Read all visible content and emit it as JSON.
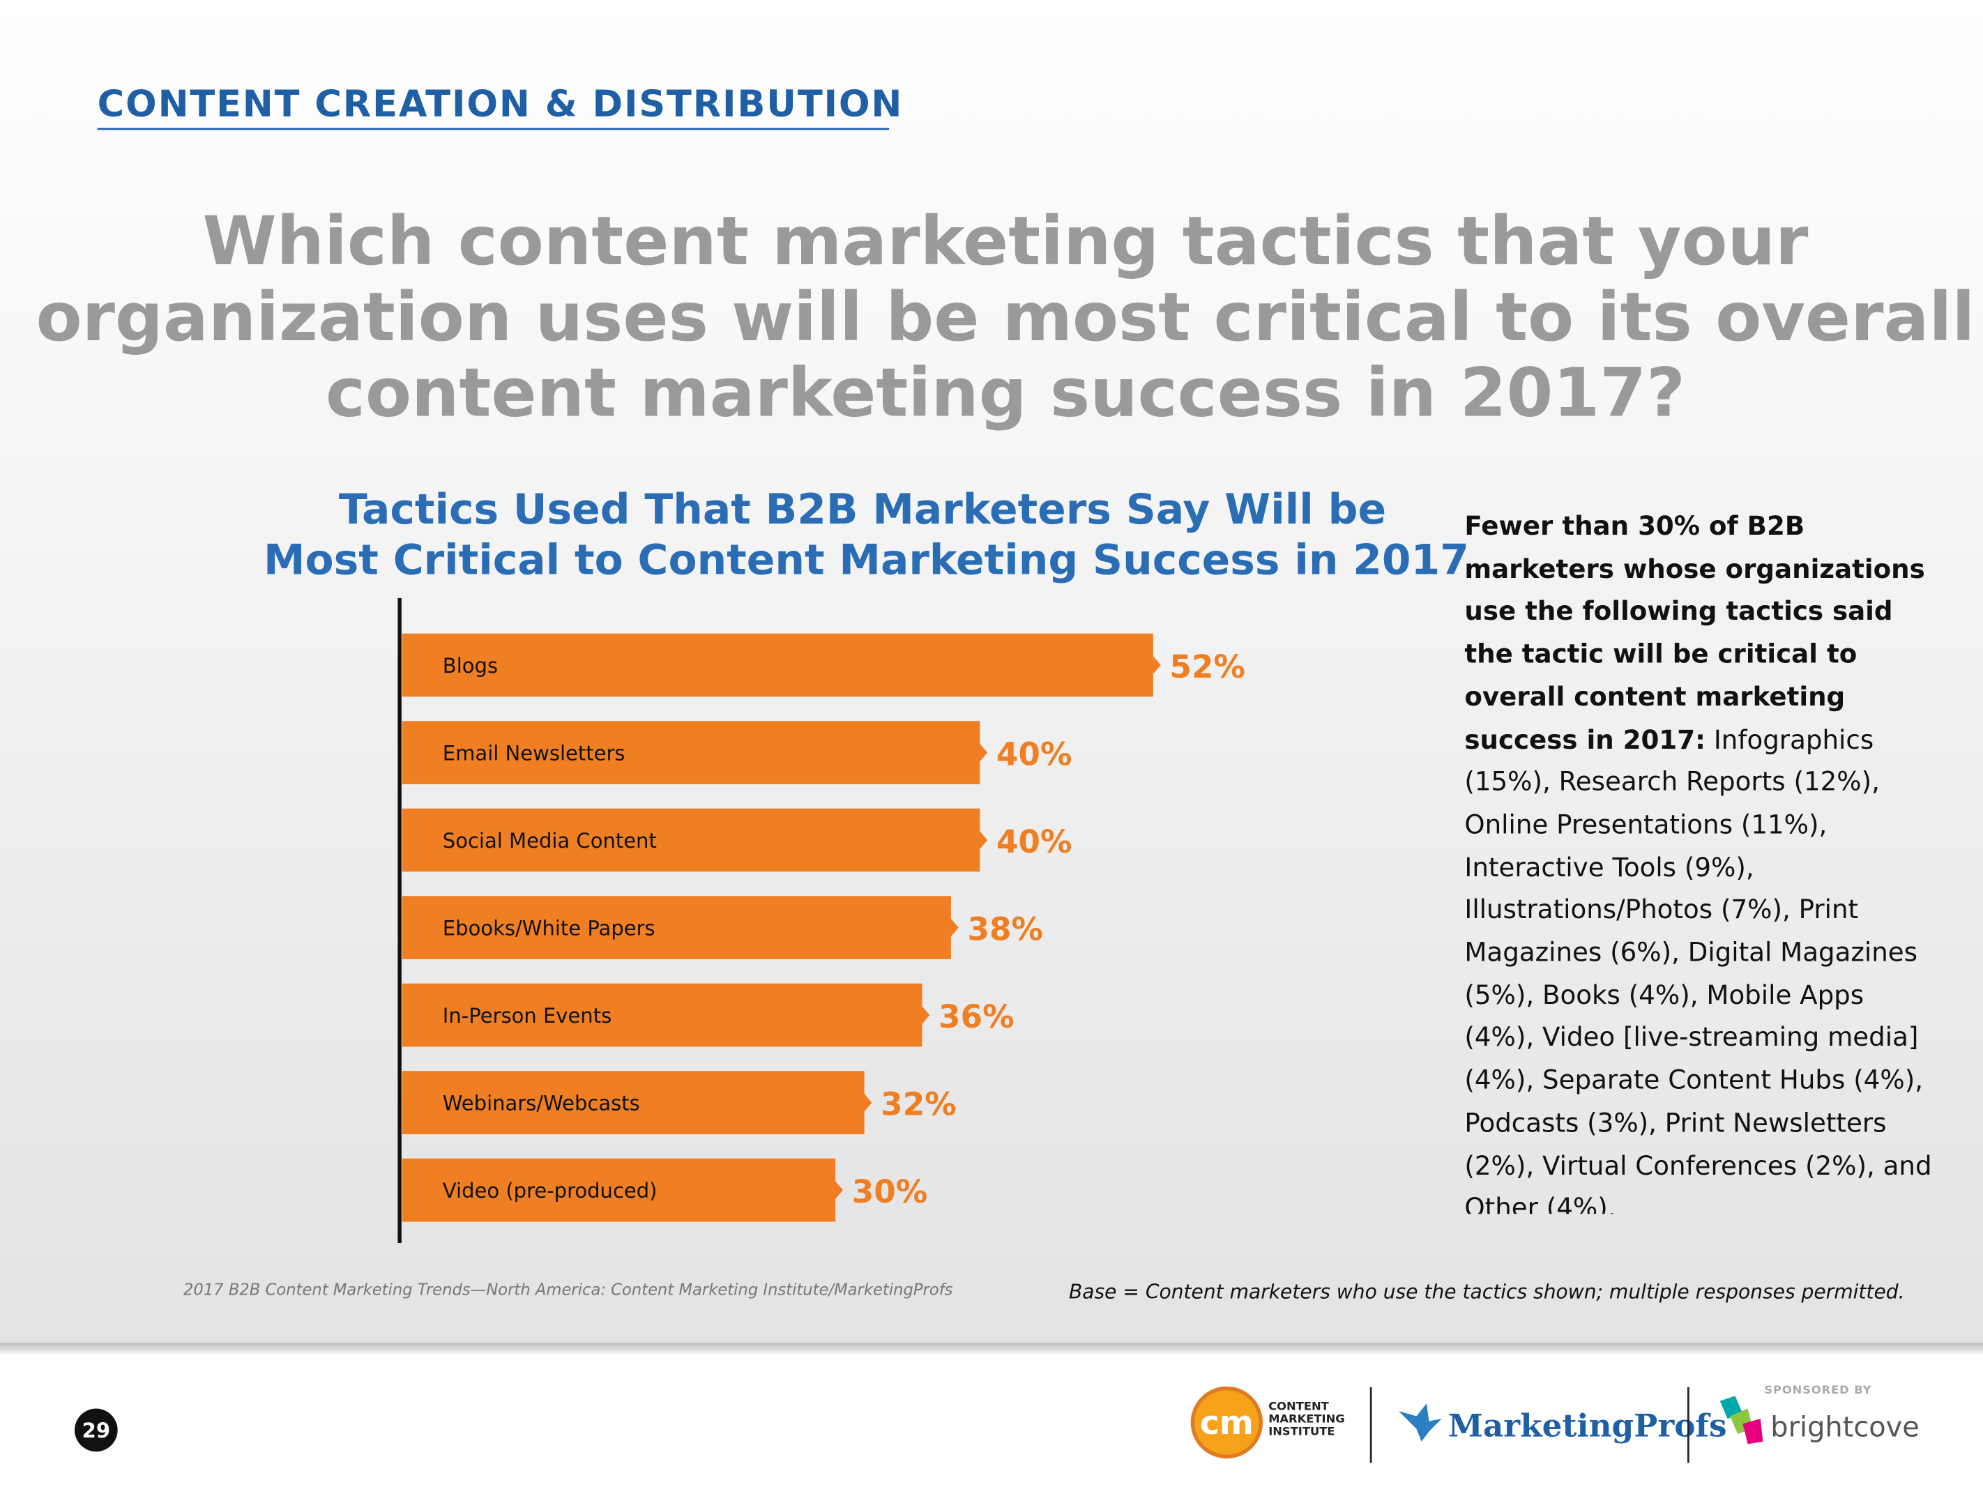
{
  "header": {
    "section": "CONTENT CREATION & DISTRIBUTION"
  },
  "question": {
    "lines": [
      "Which content marketing tactics that your",
      "organization uses will be most critical to its overall",
      "content marketing success in 2017?"
    ]
  },
  "chart_data": {
    "type": "bar",
    "orientation": "horizontal",
    "title": [
      "Tactics Used That B2B Marketers Say Will be",
      "Most Critical to Content Marketing Success in 2017"
    ],
    "categories": [
      "Blogs",
      "Email Newsletters",
      "Social Media Content",
      "Ebooks/White Papers",
      "In-Person Events",
      "Webinars/Webcasts",
      "Video (pre-produced)"
    ],
    "values": [
      52,
      40,
      40,
      38,
      36,
      32,
      30
    ],
    "value_labels": [
      "52%",
      "40%",
      "40%",
      "38%",
      "36%",
      "32%",
      "30%"
    ],
    "color": "#f07f23"
  },
  "note": {
    "bold": "Fewer than 30% of B2B marketers whose organizations use the following tactics said the tactic will be critical to overall content marketing success in 2017:",
    "text": "Infographics (15%), Research Reports (12%), Online Presentations (11%), Interactive Tools (9%), Illustrations/Photos (7%), Print Magazines (6%), Digital Magazines (5%), Books (4%), Mobile Apps (4%), Video [live-streaming media] (4%), Separate Content Hubs (4%), Podcasts (3%), Print Newsletters (2%), Virtual Conferences (2%), and Other (4%)."
  },
  "source": "2017 B2B Content Marketing Trends—North America: Content Marketing Institute/MarketingProfs",
  "base": "Base = Content marketers who use the tactics shown; multiple responses permitted.",
  "footer": {
    "page": "29",
    "cmi_badge": "cm",
    "cmi_name": [
      "CONTENT",
      "MARKETING",
      "INSTITUTE"
    ],
    "marketingprofs": "MarketingProfs",
    "sponsored": "SPONSORED BY",
    "brightcove": "brightcove"
  }
}
